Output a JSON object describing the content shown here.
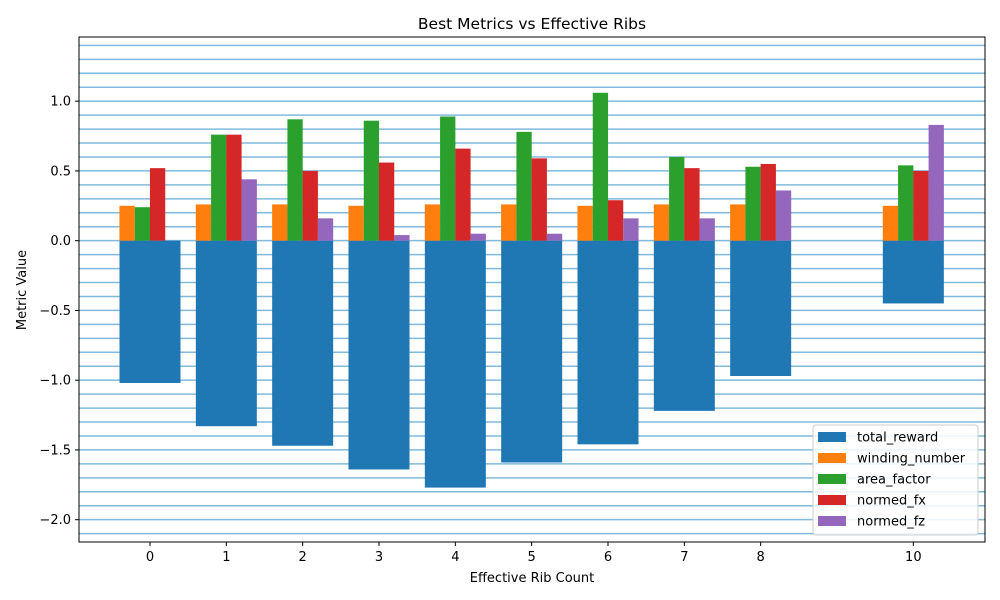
{
  "chart_data": {
    "type": "bar",
    "title": "Best Metrics vs Effective Ribs",
    "xlabel": "Effective Rib Count",
    "ylabel": "Metric Value",
    "x": [
      0,
      1,
      2,
      3,
      4,
      5,
      6,
      7,
      8,
      10
    ],
    "xticks": [
      "0",
      "1",
      "2",
      "3",
      "4",
      "5",
      "6",
      "7",
      "8",
      "10"
    ],
    "ylim": [
      -2.16,
      1.46
    ],
    "yticks": [
      -2.0,
      -1.5,
      -1.0,
      -0.5,
      0.0,
      0.5,
      1.0
    ],
    "ytick_labels": [
      "−2.0",
      "−1.5",
      "−1.0",
      "−0.5",
      "0.0",
      "0.5",
      "1.0"
    ],
    "grid": true,
    "grid_color": "#6baed6",
    "legend_position": "lower right",
    "series": [
      {
        "name": "total_reward",
        "color": "#1f77b4",
        "values": [
          -1.02,
          -1.33,
          -1.47,
          -1.64,
          -1.77,
          -1.59,
          -1.46,
          -1.22,
          -0.97,
          -0.45
        ]
      },
      {
        "name": "winding_number",
        "color": "#ff7f0e",
        "values": [
          0.25,
          0.26,
          0.26,
          0.25,
          0.26,
          0.26,
          0.25,
          0.26,
          0.26,
          0.25
        ]
      },
      {
        "name": "area_factor",
        "color": "#2ca02c",
        "values": [
          0.24,
          0.76,
          0.87,
          0.86,
          0.89,
          0.78,
          1.06,
          0.6,
          0.53,
          0.54
        ]
      },
      {
        "name": "normed_fx",
        "color": "#d62728",
        "values": [
          0.52,
          0.76,
          0.5,
          0.56,
          0.66,
          0.59,
          0.29,
          0.52,
          0.55,
          0.5
        ]
      },
      {
        "name": "normed_fz",
        "color": "#9467bd",
        "values": [
          0.0,
          0.44,
          0.16,
          0.04,
          0.05,
          0.05,
          0.16,
          0.16,
          0.36,
          0.83
        ]
      }
    ]
  }
}
